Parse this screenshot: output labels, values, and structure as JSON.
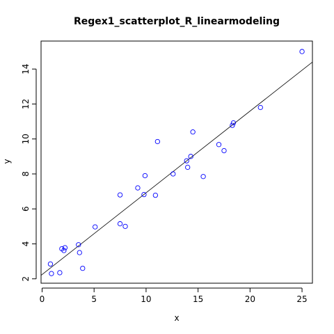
{
  "chart_data": {
    "type": "scatter",
    "title": "Regex1_scatterplot_R_linearmodeling",
    "xlabel": "x",
    "ylabel": "y",
    "xlim": [
      -0.1,
      26
    ],
    "ylim": [
      1.75,
      15.6
    ],
    "x_ticks": [
      0,
      5,
      10,
      15,
      20,
      25
    ],
    "y_ticks": [
      2,
      4,
      6,
      8,
      10,
      12,
      14
    ],
    "grid": false,
    "legend": "none",
    "point_color": "#0000ff",
    "line_color": "#000000",
    "points": [
      {
        "x": 0.8,
        "y": 2.85
      },
      {
        "x": 0.9,
        "y": 2.3
      },
      {
        "x": 1.7,
        "y": 2.35
      },
      {
        "x": 1.9,
        "y": 3.72
      },
      {
        "x": 2.1,
        "y": 3.62
      },
      {
        "x": 2.2,
        "y": 3.78
      },
      {
        "x": 3.5,
        "y": 3.95
      },
      {
        "x": 3.6,
        "y": 3.5
      },
      {
        "x": 3.9,
        "y": 2.6
      },
      {
        "x": 5.1,
        "y": 4.97
      },
      {
        "x": 7.5,
        "y": 5.15
      },
      {
        "x": 7.5,
        "y": 6.8
      },
      {
        "x": 8.0,
        "y": 5.0
      },
      {
        "x": 9.2,
        "y": 7.2
      },
      {
        "x": 9.8,
        "y": 6.82
      },
      {
        "x": 9.9,
        "y": 7.9
      },
      {
        "x": 10.9,
        "y": 6.78
      },
      {
        "x": 11.1,
        "y": 9.85
      },
      {
        "x": 12.6,
        "y": 8.0
      },
      {
        "x": 13.9,
        "y": 8.75
      },
      {
        "x": 14.0,
        "y": 8.38
      },
      {
        "x": 14.3,
        "y": 9.0
      },
      {
        "x": 14.5,
        "y": 10.4
      },
      {
        "x": 15.5,
        "y": 7.85
      },
      {
        "x": 17.0,
        "y": 9.68
      },
      {
        "x": 17.5,
        "y": 9.33
      },
      {
        "x": 18.3,
        "y": 10.78
      },
      {
        "x": 18.4,
        "y": 10.92
      },
      {
        "x": 21.0,
        "y": 11.8
      },
      {
        "x": 25.0,
        "y": 15.0
      }
    ],
    "regression_line": {
      "x0": -0.1,
      "y0": 2.2,
      "x1": 26,
      "y1": 14.4
    }
  }
}
